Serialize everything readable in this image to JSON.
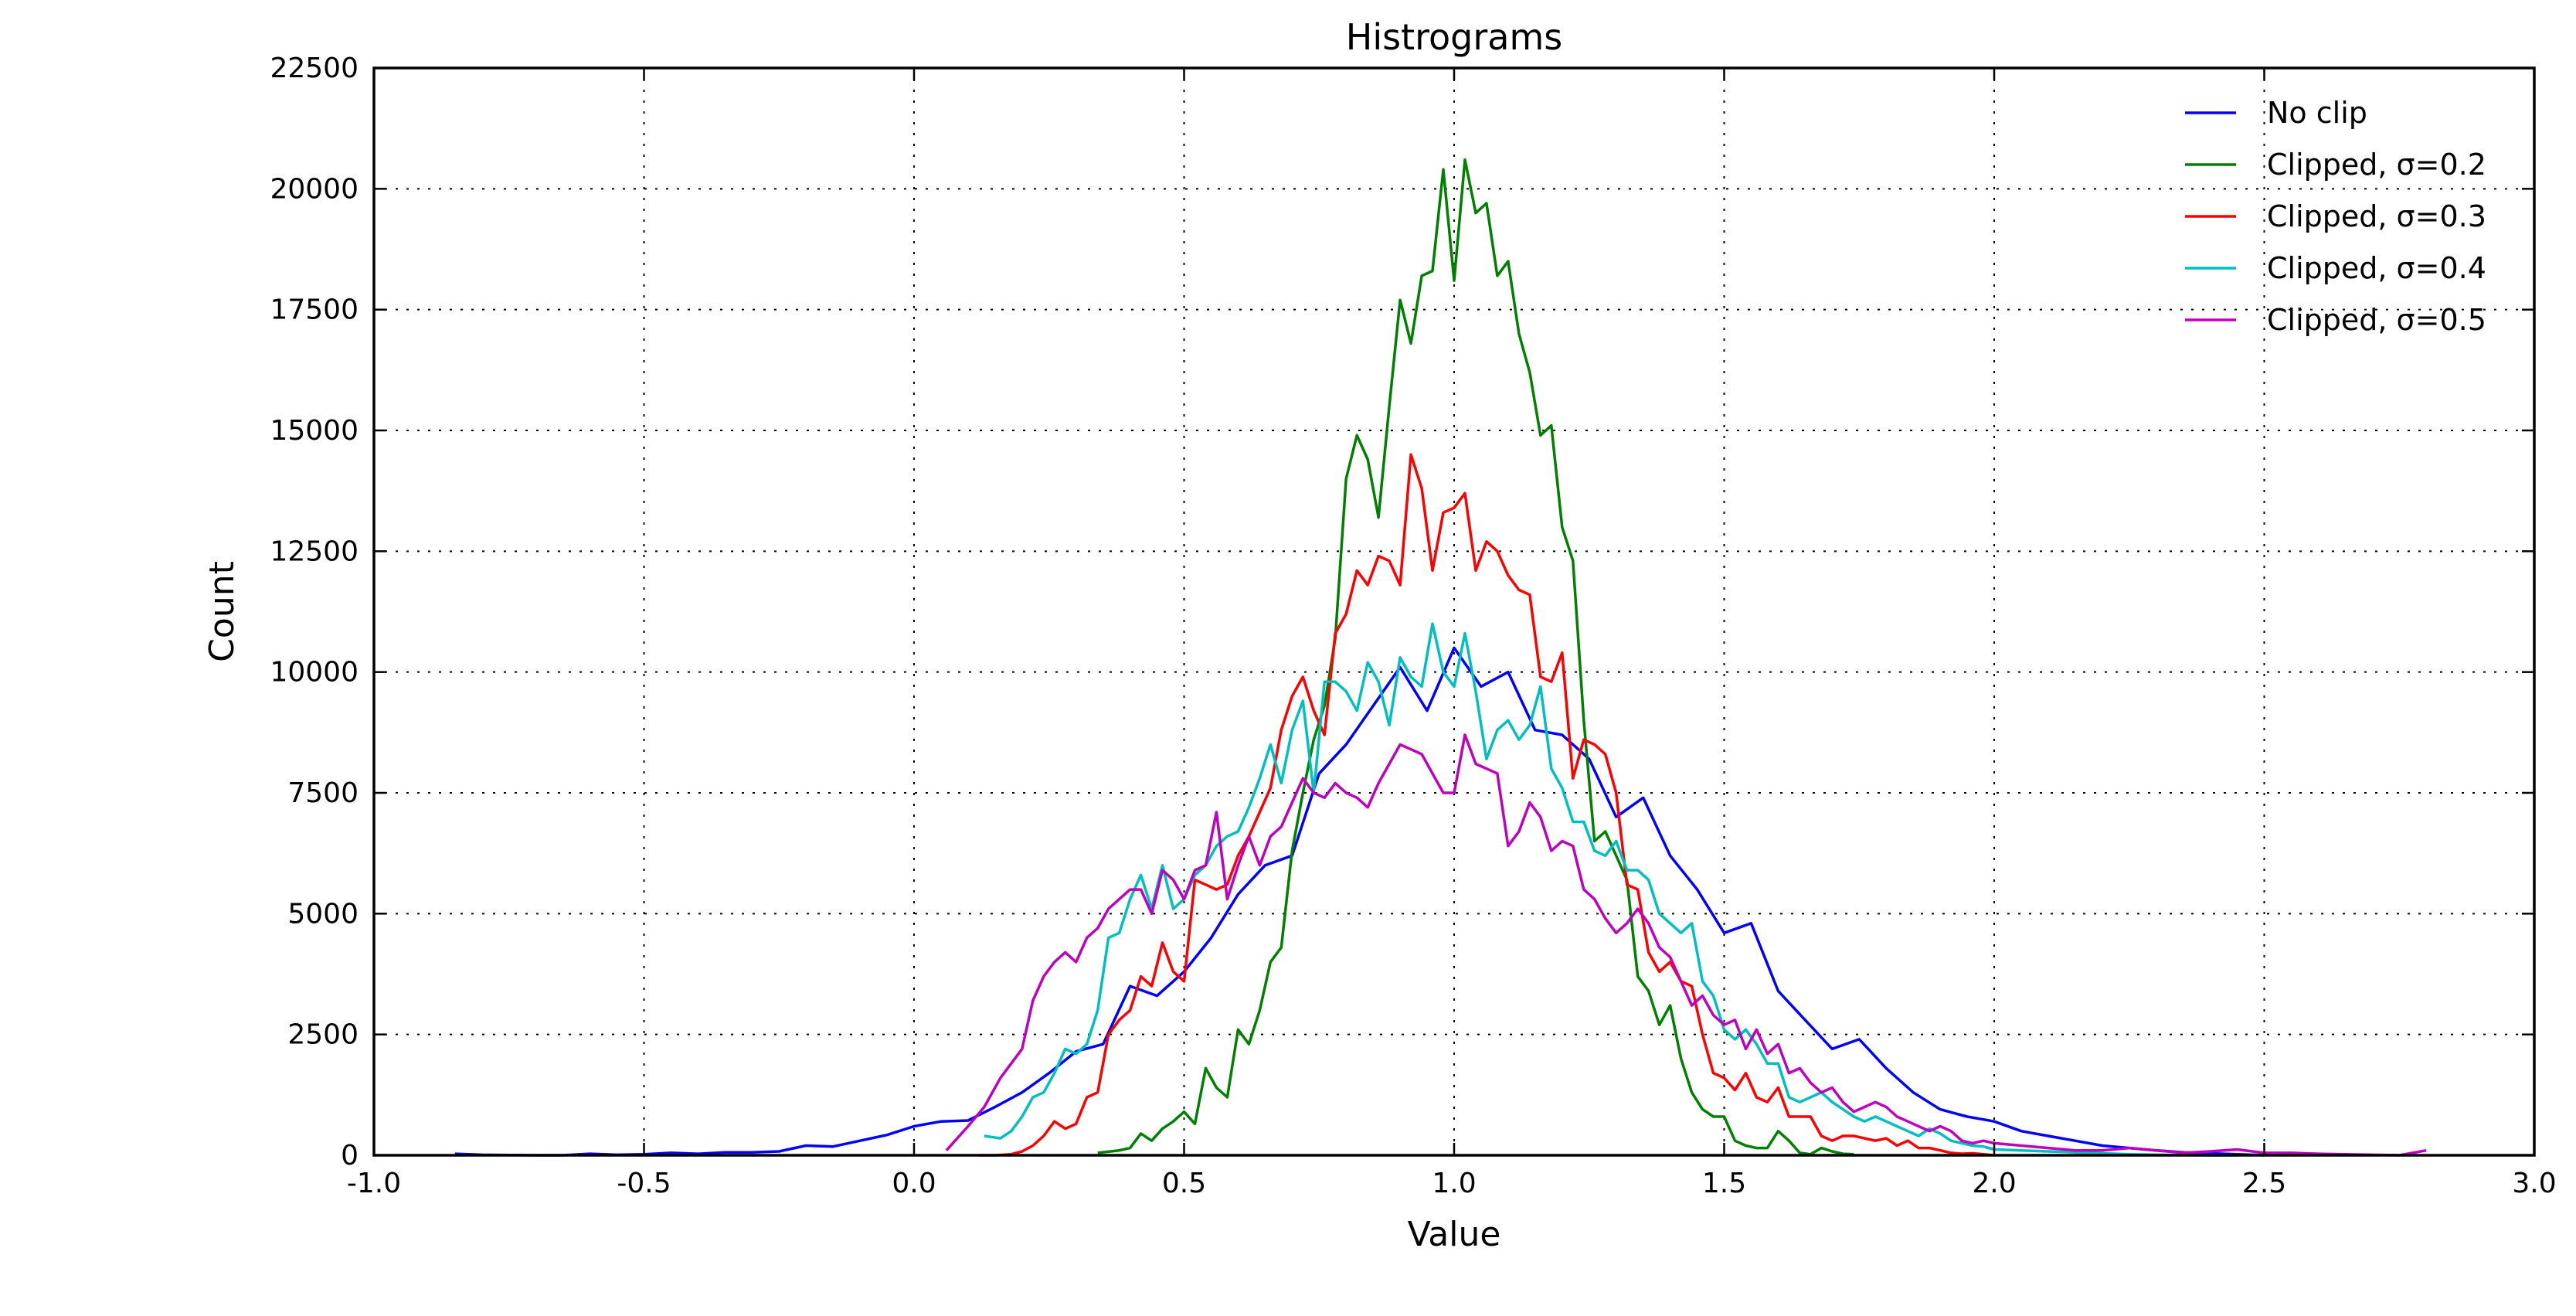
{
  "chart_data": {
    "type": "line",
    "title": "Histrograms",
    "xlabel": "Value",
    "ylabel": "Count",
    "xlim": [
      -1.0,
      3.0
    ],
    "ylim": [
      0,
      22500
    ],
    "xticks": [
      "-1.0",
      "-0.5",
      "0.0",
      "0.5",
      "1.0",
      "1.5",
      "2.0",
      "2.5",
      "3.0"
    ],
    "yticks": [
      "0",
      "2500",
      "5000",
      "7500",
      "10000",
      "12500",
      "15000",
      "17500",
      "20000",
      "22500"
    ],
    "grid": true,
    "legend_position": "top-right",
    "series": [
      {
        "name": "No clip",
        "color": "#0000ff",
        "x": [
          -0.85,
          -0.8,
          -0.75,
          -0.7,
          -0.65,
          -0.6,
          -0.55,
          -0.5,
          -0.45,
          -0.4,
          -0.35,
          -0.3,
          -0.25,
          -0.2,
          -0.15,
          -0.1,
          -0.05,
          0.0,
          0.05,
          0.1,
          0.15,
          0.2,
          0.25,
          0.3,
          0.35,
          0.4,
          0.45,
          0.5,
          0.55,
          0.6,
          0.65,
          0.7,
          0.75,
          0.8,
          0.85,
          0.9,
          0.95,
          1.0,
          1.05,
          1.1,
          1.15,
          1.2,
          1.25,
          1.3,
          1.35,
          1.4,
          1.45,
          1.5,
          1.55,
          1.6,
          1.65,
          1.7,
          1.75,
          1.8,
          1.85,
          1.9,
          1.95,
          2.0,
          2.05,
          2.1,
          2.15,
          2.2,
          2.25,
          2.3,
          2.35,
          2.4,
          2.45,
          2.5
        ],
        "y": [
          30,
          10,
          5,
          0,
          0,
          30,
          10,
          20,
          50,
          30,
          60,
          60,
          80,
          200,
          180,
          300,
          420,
          600,
          700,
          720,
          1000,
          1300,
          1700,
          2150,
          2300,
          3500,
          3300,
          3800,
          4500,
          5400,
          6000,
          6200,
          7900,
          8500,
          9300,
          10100,
          9200,
          10500,
          9700,
          10000,
          8800,
          8700,
          8200,
          7000,
          7400,
          6200,
          5500,
          4600,
          4800,
          3400,
          2800,
          2200,
          2400,
          1800,
          1300,
          950,
          800,
          700,
          500,
          400,
          300,
          200,
          150,
          100,
          60,
          40,
          20,
          0
        ]
      },
      {
        "name": "Clipped, σ=0.2",
        "color": "#008000",
        "x": [
          0.34,
          0.38,
          0.4,
          0.42,
          0.44,
          0.46,
          0.48,
          0.5,
          0.52,
          0.54,
          0.56,
          0.58,
          0.6,
          0.62,
          0.64,
          0.66,
          0.68,
          0.7,
          0.72,
          0.74,
          0.76,
          0.78,
          0.8,
          0.82,
          0.84,
          0.86,
          0.88,
          0.9,
          0.92,
          0.94,
          0.96,
          0.98,
          1.0,
          1.02,
          1.04,
          1.06,
          1.08,
          1.1,
          1.12,
          1.14,
          1.16,
          1.18,
          1.2,
          1.22,
          1.24,
          1.26,
          1.28,
          1.3,
          1.32,
          1.34,
          1.36,
          1.38,
          1.4,
          1.42,
          1.44,
          1.46,
          1.48,
          1.5,
          1.52,
          1.54,
          1.56,
          1.58,
          1.6,
          1.62,
          1.64,
          1.66,
          1.68,
          1.7,
          1.72,
          1.74
        ],
        "y": [
          50,
          100,
          150,
          450,
          300,
          550,
          700,
          900,
          650,
          1800,
          1400,
          1200,
          2600,
          2300,
          3000,
          4000,
          4300,
          6300,
          7500,
          8600,
          9300,
          10700,
          14000,
          14900,
          14400,
          13200,
          15500,
          17700,
          16800,
          18200,
          18300,
          20400,
          18100,
          20600,
          19500,
          19700,
          18200,
          18500,
          17000,
          16200,
          14900,
          15100,
          13000,
          12300,
          9000,
          6500,
          6700,
          6200,
          5700,
          3700,
          3400,
          2700,
          3100,
          2000,
          1300,
          950,
          800,
          800,
          300,
          200,
          150,
          150,
          500,
          300,
          50,
          20,
          150,
          80,
          30,
          20
        ]
      },
      {
        "name": "Clipped, σ=0.3",
        "color": "#ff0000",
        "x": [
          0.12,
          0.15,
          0.18,
          0.2,
          0.22,
          0.24,
          0.26,
          0.28,
          0.3,
          0.32,
          0.34,
          0.36,
          0.38,
          0.4,
          0.42,
          0.44,
          0.46,
          0.48,
          0.5,
          0.52,
          0.54,
          0.56,
          0.58,
          0.6,
          0.62,
          0.64,
          0.66,
          0.68,
          0.7,
          0.72,
          0.74,
          0.76,
          0.78,
          0.8,
          0.82,
          0.84,
          0.86,
          0.88,
          0.9,
          0.92,
          0.94,
          0.96,
          0.98,
          1.0,
          1.02,
          1.04,
          1.06,
          1.08,
          1.1,
          1.12,
          1.14,
          1.16,
          1.18,
          1.2,
          1.22,
          1.24,
          1.26,
          1.28,
          1.3,
          1.32,
          1.34,
          1.36,
          1.38,
          1.4,
          1.42,
          1.44,
          1.46,
          1.48,
          1.5,
          1.52,
          1.54,
          1.56,
          1.58,
          1.6,
          1.62,
          1.64,
          1.66,
          1.68,
          1.7,
          1.72,
          1.74,
          1.76,
          1.78,
          1.8,
          1.82,
          1.84,
          1.86,
          1.88,
          1.9,
          1.92,
          1.94,
          1.96,
          1.98,
          2.0
        ],
        "y": [
          0,
          0,
          20,
          80,
          200,
          400,
          700,
          550,
          650,
          1200,
          1300,
          2500,
          2800,
          3000,
          3700,
          3500,
          4400,
          3800,
          3600,
          5700,
          5600,
          5500,
          5600,
          6200,
          6600,
          7100,
          7600,
          8800,
          9500,
          9900,
          9200,
          8700,
          10800,
          11200,
          12100,
          11800,
          12400,
          12300,
          11800,
          14500,
          13800,
          12100,
          13300,
          13400,
          13700,
          12100,
          12700,
          12500,
          12000,
          11700,
          11600,
          9900,
          9800,
          10400,
          7800,
          8600,
          8500,
          8300,
          7500,
          5600,
          5500,
          4200,
          3800,
          4000,
          3600,
          3500,
          2500,
          1700,
          1600,
          1350,
          1700,
          1200,
          1100,
          1400,
          800,
          800,
          800,
          400,
          300,
          400,
          400,
          350,
          300,
          350,
          200,
          300,
          150,
          150,
          100,
          50,
          30,
          40,
          20,
          0
        ]
      },
      {
        "name": "Clipped, σ=0.4",
        "color": "#00bfbf",
        "x": [
          0.13,
          0.16,
          0.18,
          0.2,
          0.22,
          0.24,
          0.26,
          0.28,
          0.3,
          0.32,
          0.34,
          0.36,
          0.38,
          0.4,
          0.42,
          0.44,
          0.46,
          0.48,
          0.5,
          0.52,
          0.54,
          0.56,
          0.58,
          0.6,
          0.62,
          0.64,
          0.66,
          0.68,
          0.7,
          0.72,
          0.74,
          0.76,
          0.78,
          0.8,
          0.82,
          0.84,
          0.86,
          0.88,
          0.9,
          0.92,
          0.94,
          0.96,
          0.98,
          1.0,
          1.02,
          1.04,
          1.06,
          1.08,
          1.1,
          1.12,
          1.14,
          1.16,
          1.18,
          1.2,
          1.22,
          1.24,
          1.26,
          1.28,
          1.3,
          1.32,
          1.34,
          1.36,
          1.38,
          1.4,
          1.42,
          1.44,
          1.46,
          1.48,
          1.5,
          1.52,
          1.54,
          1.56,
          1.58,
          1.6,
          1.62,
          1.64,
          1.66,
          1.68,
          1.7,
          1.72,
          1.74,
          1.76,
          1.78,
          1.8,
          1.82,
          1.84,
          1.86,
          1.88,
          1.9,
          1.92,
          1.94,
          1.96,
          1.98,
          2.0,
          2.05,
          2.1,
          2.15,
          2.2,
          2.25,
          2.3,
          2.35,
          2.4,
          2.45
        ],
        "y": [
          400,
          350,
          500,
          800,
          1200,
          1300,
          1700,
          2200,
          2100,
          2300,
          3000,
          4500,
          4600,
          5300,
          5800,
          5100,
          6000,
          5100,
          5300,
          5800,
          6000,
          6400,
          6600,
          6700,
          7200,
          7800,
          8500,
          7700,
          8800,
          9400,
          7500,
          9800,
          9800,
          9600,
          9200,
          10200,
          9800,
          8900,
          10300,
          9900,
          9700,
          11000,
          10000,
          9700,
          10800,
          9600,
          8200,
          8800,
          9000,
          8600,
          8900,
          9700,
          8000,
          7600,
          6900,
          6900,
          6300,
          6200,
          6500,
          5900,
          5900,
          5700,
          5000,
          4800,
          4600,
          4800,
          3600,
          3300,
          2600,
          2400,
          2600,
          2300,
          1900,
          1900,
          1200,
          1100,
          1200,
          1300,
          1100,
          950,
          800,
          700,
          800,
          700,
          600,
          500,
          400,
          550,
          450,
          300,
          250,
          200,
          180,
          120,
          100,
          80,
          60,
          40,
          20,
          10,
          5,
          0,
          0
        ]
      },
      {
        "name": "Clipped, σ=0.5",
        "color": "#bf00bf",
        "x": [
          0.06,
          0.1,
          0.13,
          0.16,
          0.18,
          0.2,
          0.22,
          0.24,
          0.26,
          0.28,
          0.3,
          0.32,
          0.34,
          0.36,
          0.38,
          0.4,
          0.42,
          0.44,
          0.46,
          0.48,
          0.5,
          0.52,
          0.54,
          0.56,
          0.58,
          0.6,
          0.62,
          0.64,
          0.66,
          0.68,
          0.7,
          0.72,
          0.74,
          0.76,
          0.78,
          0.8,
          0.82,
          0.84,
          0.86,
          0.88,
          0.9,
          0.92,
          0.94,
          0.96,
          0.98,
          1.0,
          1.02,
          1.04,
          1.06,
          1.08,
          1.1,
          1.12,
          1.14,
          1.16,
          1.18,
          1.2,
          1.22,
          1.24,
          1.26,
          1.28,
          1.3,
          1.32,
          1.34,
          1.36,
          1.38,
          1.4,
          1.42,
          1.44,
          1.46,
          1.48,
          1.5,
          1.52,
          1.54,
          1.56,
          1.58,
          1.6,
          1.62,
          1.64,
          1.66,
          1.68,
          1.7,
          1.72,
          1.74,
          1.76,
          1.78,
          1.8,
          1.82,
          1.84,
          1.86,
          1.88,
          1.9,
          1.92,
          1.94,
          1.96,
          1.98,
          2.0,
          2.05,
          2.1,
          2.15,
          2.2,
          2.25,
          2.3,
          2.35,
          2.4,
          2.45,
          2.5,
          2.55,
          2.6,
          2.65,
          2.7,
          2.75,
          2.8
        ],
        "y": [
          100,
          600,
          1000,
          1600,
          1900,
          2200,
          3200,
          3700,
          4000,
          4200,
          4000,
          4500,
          4700,
          5100,
          5300,
          5500,
          5500,
          5000,
          5900,
          5700,
          5300,
          5900,
          6000,
          7100,
          5300,
          6000,
          6600,
          6000,
          6600,
          6800,
          7300,
          7800,
          7500,
          7400,
          7700,
          7500,
          7400,
          7200,
          7700,
          8100,
          8500,
          8400,
          8300,
          7900,
          7500,
          7500,
          8700,
          8100,
          8000,
          7900,
          6400,
          6700,
          7300,
          7000,
          6300,
          6500,
          6400,
          5500,
          5300,
          4900,
          4600,
          4800,
          5100,
          4800,
          4300,
          4100,
          3600,
          3100,
          3300,
          2900,
          2700,
          2800,
          2200,
          2600,
          2100,
          2300,
          1700,
          1800,
          1500,
          1300,
          1400,
          1100,
          900,
          1000,
          1100,
          1000,
          800,
          700,
          600,
          500,
          600,
          500,
          300,
          250,
          300,
          250,
          200,
          150,
          100,
          100,
          150,
          100,
          50,
          80,
          120,
          50,
          50,
          30,
          20,
          10,
          0,
          100
        ]
      }
    ]
  }
}
